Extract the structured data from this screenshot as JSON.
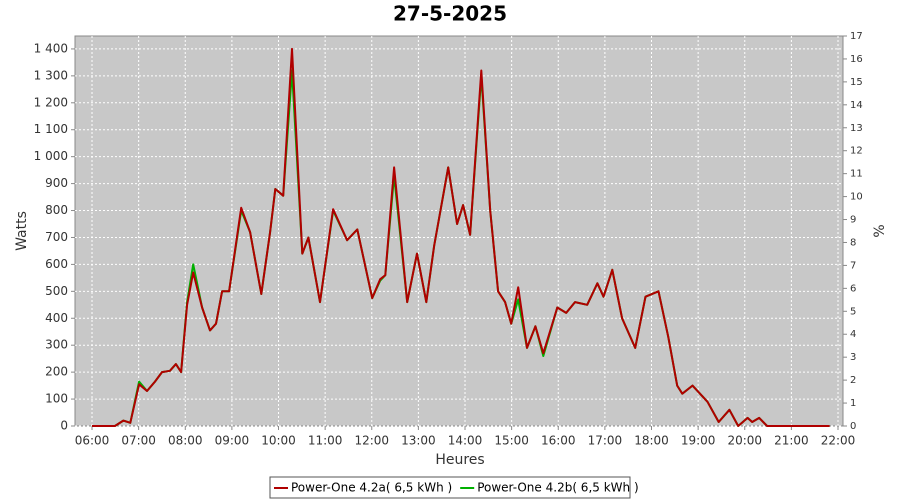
{
  "chart_data": {
    "type": "line",
    "title": "27-5-2025",
    "x_label": "Heures",
    "y_label": "Watts",
    "y2_label": "%",
    "x": [
      6.0,
      6.49,
      6.67,
      6.82,
      7.01,
      7.18,
      7.35,
      7.5,
      7.67,
      7.8,
      7.91,
      8.04,
      8.17,
      8.36,
      8.53,
      8.66,
      8.79,
      8.94,
      9.2,
      9.39,
      9.63,
      9.82,
      9.93,
      10.1,
      10.29,
      10.51,
      10.64,
      10.89,
      11.17,
      11.47,
      11.69,
      12.01,
      12.18,
      12.29,
      12.48,
      12.76,
      12.97,
      13.17,
      13.34,
      13.64,
      13.83,
      13.96,
      14.11,
      14.35,
      14.54,
      14.71,
      14.86,
      14.99,
      15.14,
      15.33,
      15.51,
      15.68,
      15.98,
      16.17,
      16.36,
      16.62,
      16.84,
      16.97,
      17.16,
      17.37,
      17.65,
      17.87,
      18.15,
      18.36,
      18.55,
      18.66,
      18.88,
      19.2,
      19.44,
      19.67,
      19.86,
      20.06,
      20.16,
      20.31,
      20.48,
      21.82
    ],
    "series": [
      {
        "name": "Power-One 4.2b( 6,5 kWh )",
        "color": "#00b000",
        "values": [
          0,
          0,
          20,
          12,
          165,
          130,
          165,
          200,
          205,
          230,
          200,
          460,
          600,
          440,
          355,
          380,
          500,
          500,
          800,
          720,
          490,
          720,
          880,
          855,
          1320,
          640,
          700,
          460,
          800,
          690,
          730,
          475,
          540,
          560,
          930,
          460,
          640,
          460,
          670,
          960,
          750,
          820,
          710,
          1300,
          800,
          500,
          460,
          380,
          470,
          290,
          370,
          260,
          440,
          420,
          460,
          450,
          530,
          480,
          580,
          400,
          290,
          480,
          500,
          330,
          150,
          120,
          150,
          90,
          15,
          60,
          0,
          30,
          15,
          30,
          0,
          0
        ]
      },
      {
        "name": "Power-One 4.2a( 6,5 kWh )",
        "color": "#b00000",
        "values": [
          0,
          0,
          20,
          12,
          155,
          130,
          165,
          200,
          205,
          230,
          200,
          450,
          570,
          440,
          355,
          380,
          500,
          500,
          810,
          720,
          490,
          720,
          880,
          855,
          1400,
          640,
          700,
          460,
          805,
          690,
          730,
          475,
          545,
          560,
          960,
          460,
          640,
          460,
          670,
          960,
          750,
          820,
          710,
          1320,
          800,
          500,
          460,
          380,
          515,
          290,
          370,
          270,
          440,
          420,
          460,
          450,
          530,
          480,
          580,
          400,
          290,
          480,
          500,
          330,
          150,
          120,
          150,
          90,
          15,
          60,
          0,
          30,
          15,
          30,
          0,
          0
        ]
      }
    ],
    "xlim": [
      5.635,
      22.107
    ],
    "xticks": [
      {
        "value": 6,
        "label": "06:00"
      },
      {
        "value": 7,
        "label": "07:00"
      },
      {
        "value": 8,
        "label": "08:00"
      },
      {
        "value": 9,
        "label": "09:00"
      },
      {
        "value": 10,
        "label": "10:00"
      },
      {
        "value": 11,
        "label": "11:00"
      },
      {
        "value": 12,
        "label": "12:00"
      },
      {
        "value": 13,
        "label": "13:00"
      },
      {
        "value": 14,
        "label": "14:00"
      },
      {
        "value": 15,
        "label": "15:00"
      },
      {
        "value": 16,
        "label": "16:00"
      },
      {
        "value": 17,
        "label": "17:00"
      },
      {
        "value": 18,
        "label": "18:00"
      },
      {
        "value": 19,
        "label": "19:00"
      },
      {
        "value": 20,
        "label": "20:00"
      },
      {
        "value": 21,
        "label": "21:00"
      },
      {
        "value": 22,
        "label": "22:00"
      }
    ],
    "ylim": [
      0,
      1448
    ],
    "yticks": [
      0,
      100,
      200,
      300,
      400,
      500,
      600,
      700,
      800,
      900,
      {
        "value": 1000,
        "label": "1 000"
      },
      {
        "value": 1100,
        "label": "1 100"
      },
      {
        "value": 1200,
        "label": "1 200"
      },
      {
        "value": 1300,
        "label": "1 300"
      },
      {
        "value": 1400,
        "label": "1 400"
      }
    ],
    "y2lim": [
      0,
      17
    ],
    "y2ticks": [
      0,
      1,
      2,
      3,
      4,
      5,
      6,
      7,
      8,
      9,
      10,
      11,
      12,
      13,
      14,
      15,
      16,
      17
    ],
    "grid": true
  }
}
